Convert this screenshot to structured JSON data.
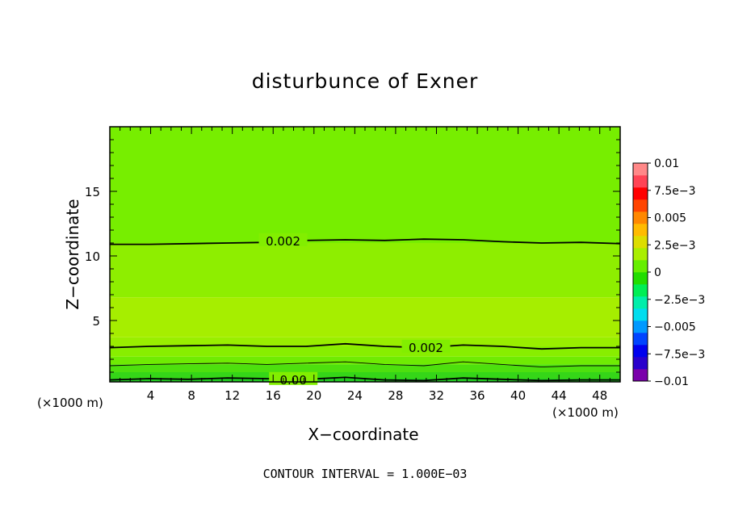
{
  "chart_data": {
    "type": "heatmap",
    "title": "disturbunce of Exner",
    "xlabel": "X−coordinate",
    "ylabel": "Z−coordinate",
    "x_unit_left": "(×1000 m)",
    "x_unit_right": "(×1000 m)",
    "xlim": [
      0,
      50
    ],
    "ylim": [
      0.25,
      20
    ],
    "x_ticks": [
      4,
      8,
      12,
      16,
      20,
      24,
      28,
      32,
      36,
      40,
      44,
      48
    ],
    "y_ticks": [
      5,
      10,
      15
    ],
    "annotation": "CONTOUR INTERVAL = 1.000E−03",
    "colorbar": {
      "labels": [
        "0.01",
        "7.5e−3",
        "0.005",
        "2.5e−3",
        "0",
        "−2.5e−3",
        "−0.005",
        "−7.5e−3",
        "−0.01"
      ],
      "label_values": [
        0.01,
        0.0075,
        0.005,
        0.0025,
        0,
        -0.0025,
        -0.005,
        -0.0075,
        -0.01
      ],
      "range": [
        -0.01,
        0.01
      ],
      "colors": [
        "#7a00aa",
        "#2a00cc",
        "#0000ee",
        "#0044ff",
        "#0099ff",
        "#00ddee",
        "#00eeaa",
        "#00ee55",
        "#22dd00",
        "#66ee00",
        "#aaee00",
        "#dddd00",
        "#ffbb00",
        "#ff8800",
        "#ff4400",
        "#ff0000",
        "#ff4455",
        "#ff8888"
      ]
    },
    "bands": [
      {
        "z_from": 0.25,
        "z_to": 0.5,
        "level": 0.0005
      },
      {
        "z_from": 0.5,
        "z_to": 1.0,
        "level": 0.0009
      },
      {
        "z_from": 1.0,
        "z_to": 1.6,
        "level": 0.0013
      },
      {
        "z_from": 1.6,
        "z_to": 2.2,
        "level": 0.0017
      },
      {
        "z_from": 2.2,
        "z_to": 3.0,
        "level": 0.0021
      },
      {
        "z_from": 3.0,
        "z_to": 3.7,
        "level": 0.0024
      },
      {
        "z_from": 3.7,
        "z_to": 6.8,
        "level": 0.0027
      },
      {
        "z_from": 6.8,
        "z_to": 11.0,
        "level": 0.0022
      },
      {
        "z_from": 11.0,
        "z_to": 20.0,
        "level": 0.0018
      }
    ],
    "contours": [
      {
        "value": 0.002,
        "label": "0.002",
        "z": [
          10.9,
          10.9,
          10.95,
          11.0,
          11.05,
          11.2,
          11.25,
          11.2,
          11.3,
          11.25,
          11.1,
          11.0,
          11.05,
          10.95
        ],
        "label_x": 16.5,
        "label_z": 11.2
      },
      {
        "value": 0.002,
        "label": "0.002",
        "z": [
          2.9,
          3.0,
          3.05,
          3.1,
          3.0,
          3.0,
          3.2,
          3.0,
          2.9,
          3.1,
          3.0,
          2.8,
          2.9,
          2.9
        ],
        "label_x": 30.5,
        "label_z": 2.95
      },
      {
        "value": 0.001,
        "label": "",
        "z": [
          1.5,
          1.6,
          1.65,
          1.7,
          1.6,
          1.7,
          1.8,
          1.6,
          1.5,
          1.8,
          1.6,
          1.4,
          1.5,
          1.5
        ],
        "label_x": 0,
        "label_z": 0
      },
      {
        "value": 0.0,
        "label": "0.00",
        "z": [
          0.4,
          0.5,
          0.45,
          0.55,
          0.5,
          0.45,
          0.6,
          0.4,
          0.35,
          0.55,
          0.45,
          0.35,
          0.4,
          0.4
        ],
        "label_x": 17.5,
        "label_z": 0.45
      }
    ]
  }
}
